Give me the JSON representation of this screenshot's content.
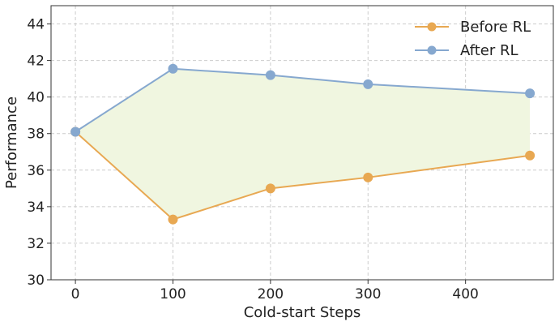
{
  "chart_data": {
    "type": "line",
    "title": "",
    "xlabel": "Cold-start Steps",
    "ylabel": "Performance",
    "x": [
      0,
      100,
      200,
      300,
      466
    ],
    "xlim": [
      -25,
      490
    ],
    "ylim": [
      30,
      45
    ],
    "xticks": [
      0,
      100,
      200,
      300,
      400
    ],
    "yticks": [
      30,
      32,
      34,
      36,
      38,
      40,
      42,
      44
    ],
    "grid": true,
    "legend_position": "top-right",
    "fill_between": {
      "color": "#f0f6e0"
    },
    "series": [
      {
        "name": "Before RL",
        "color": "#e8a852",
        "values": [
          38.1,
          33.3,
          35.0,
          35.6,
          36.8
        ]
      },
      {
        "name": "After RL",
        "color": "#86a8cf",
        "values": [
          38.1,
          41.55,
          41.2,
          40.7,
          40.2
        ]
      }
    ]
  }
}
